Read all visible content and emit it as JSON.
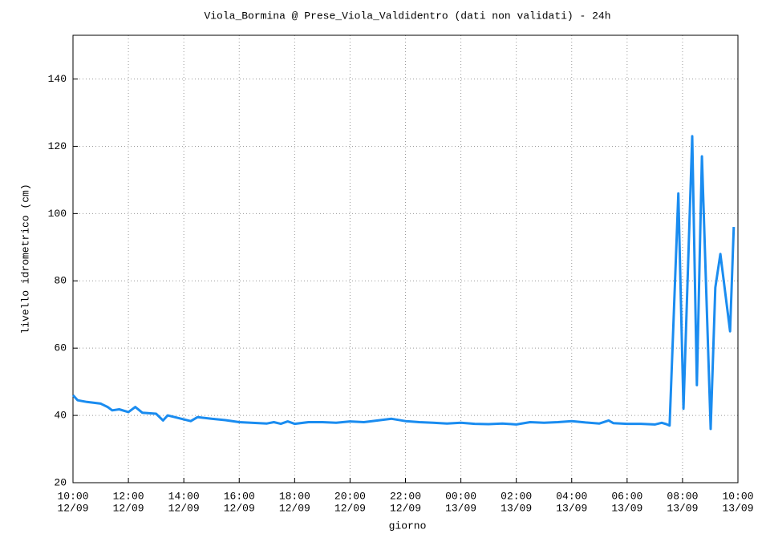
{
  "chart_data": {
    "type": "line",
    "title": "Viola_Bormina @ Prese_Viola_Valdidentro (dati non validati) - 24h",
    "x_label": "giorno",
    "y_label": "livello idrometrico (cm)",
    "x": [
      "12/09 10:00",
      "12/09 10:10",
      "12/09 10:30",
      "12/09 11:00",
      "12/09 11:15",
      "12/09 11:25",
      "12/09 11:40",
      "12/09 12:00",
      "12/09 12:15",
      "12/09 12:30",
      "12/09 13:00",
      "12/09 13:15",
      "12/09 13:25",
      "12/09 13:40",
      "12/09 14:00",
      "12/09 14:15",
      "12/09 14:30",
      "12/09 15:00",
      "12/09 15:30",
      "12/09 16:00",
      "12/09 17:00",
      "12/09 17:15",
      "12/09 17:30",
      "12/09 17:45",
      "12/09 18:00",
      "12/09 18:30",
      "12/09 19:00",
      "12/09 19:30",
      "12/09 20:00",
      "12/09 20:30",
      "12/09 21:00",
      "12/09 21:30",
      "12/09 22:00",
      "12/09 22:30",
      "12/09 23:00",
      "12/09 23:30",
      "13/09 00:00",
      "13/09 00:30",
      "13/09 01:00",
      "13/09 01:30",
      "13/09 02:00",
      "13/09 02:30",
      "13/09 03:00",
      "13/09 03:30",
      "13/09 04:00",
      "13/09 04:30",
      "13/09 05:00",
      "13/09 05:20",
      "13/09 05:30",
      "13/09 06:00",
      "13/09 06:30",
      "13/09 07:00",
      "13/09 07:15",
      "13/09 07:25",
      "13/09 07:32",
      "13/09 07:51",
      "13/09 08:02",
      "13/09 08:21",
      "13/09 08:31",
      "13/09 08:42",
      "13/09 09:01",
      "13/09 09:11",
      "13/09 09:22",
      "13/09 09:43",
      "13/09 09:51"
    ],
    "series": [
      {
        "name": "Viola_Bormina",
        "color": "#1a8cf0",
        "values": [
          46,
          44.5,
          44,
          43.5,
          42.5,
          41.5,
          41.8,
          41,
          42.5,
          40.8,
          40.5,
          38.5,
          40,
          39.5,
          38.8,
          38.3,
          39.5,
          39,
          38.6,
          38,
          37.6,
          38,
          37.5,
          38.2,
          37.5,
          38,
          38,
          37.8,
          38.2,
          38,
          38.5,
          39,
          38.3,
          38,
          37.8,
          37.6,
          37.8,
          37.5,
          37.4,
          37.6,
          37.3,
          38,
          37.8,
          38,
          38.3,
          37.9,
          37.6,
          38.5,
          37.7,
          37.5,
          37.5,
          37.3,
          37.8,
          37.4,
          37,
          106,
          42,
          123,
          49,
          117,
          36,
          78,
          88,
          65,
          96
        ]
      }
    ],
    "xlim": [
      "12/09 10:00",
      "13/09 10:00"
    ],
    "xticks": [
      {
        "value": "12/09 10:00",
        "label": [
          "10:00",
          "12/09"
        ]
      },
      {
        "value": "12/09 12:00",
        "label": [
          "12:00",
          "12/09"
        ]
      },
      {
        "value": "12/09 14:00",
        "label": [
          "14:00",
          "12/09"
        ]
      },
      {
        "value": "12/09 16:00",
        "label": [
          "16:00",
          "12/09"
        ]
      },
      {
        "value": "12/09 18:00",
        "label": [
          "18:00",
          "12/09"
        ]
      },
      {
        "value": "12/09 20:00",
        "label": [
          "20:00",
          "12/09"
        ]
      },
      {
        "value": "12/09 22:00",
        "label": [
          "22:00",
          "12/09"
        ]
      },
      {
        "value": "13/09 00:00",
        "label": [
          "00:00",
          "13/09"
        ]
      },
      {
        "value": "13/09 02:00",
        "label": [
          "02:00",
          "13/09"
        ]
      },
      {
        "value": "13/09 04:00",
        "label": [
          "04:00",
          "13/09"
        ]
      },
      {
        "value": "13/09 06:00",
        "label": [
          "06:00",
          "13/09"
        ]
      },
      {
        "value": "13/09 08:00",
        "label": [
          "08:00",
          "13/09"
        ]
      },
      {
        "value": "13/09 10:00",
        "label": [
          "10:00",
          "13/09"
        ]
      }
    ],
    "ylim": [
      20,
      153
    ],
    "yticks": [
      20,
      40,
      60,
      80,
      100,
      120,
      140
    ],
    "grid": true
  }
}
